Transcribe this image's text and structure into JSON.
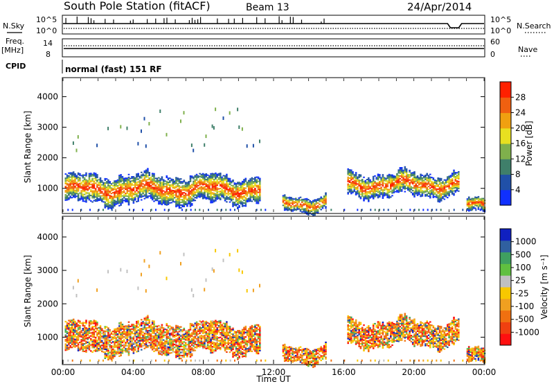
{
  "header": {
    "station": "South Pole Station (fitACF)",
    "beam": "Beam 13",
    "date": "24/Apr/2014"
  },
  "aux_panels": {
    "nsky_label": "N.Sky",
    "nsearch_label": "N.Search",
    "nsky_ticks": [
      "10^5",
      "10^0"
    ],
    "nsky_ticks_right": [
      "10^5",
      "10^0"
    ],
    "freq_label_1": "Freq.",
    "freq_label_2": "[MHz]",
    "freq_ticks": [
      "14",
      "8"
    ],
    "nave_label": "Nave",
    "nave_ticks": [
      "60",
      "0"
    ],
    "cpid_label": "CPID",
    "cpid_text": "normal (fast) 151 RF"
  },
  "chart_data": [
    {
      "type": "heatmap",
      "panel": "power",
      "ylabel": "Slant Range [km]",
      "yticks": [
        1000,
        2000,
        3000,
        4000
      ],
      "ylim": [
        200,
        4600
      ],
      "xlim": [
        0,
        24
      ],
      "colorbar": {
        "label": "Power [dB]",
        "ticks": [
          "4",
          "8",
          "12",
          "16",
          "20",
          "24",
          "28"
        ],
        "colors": [
          "#1030ff",
          "#2050a8",
          "#3f7f6a",
          "#7fb04c",
          "#e8e020",
          "#f0a010",
          "#f06010",
          "#ff2000"
        ]
      },
      "echo_bands": [
        {
          "t0": 0.1,
          "t1": 11.2,
          "range_center": 950,
          "range_halfwidth": 420
        },
        {
          "t0": 12.5,
          "t1": 15.0,
          "range_center": 500,
          "range_halfwidth": 220
        },
        {
          "t0": 16.2,
          "t1": 22.5,
          "range_center": 1100,
          "range_halfwidth": 350
        },
        {
          "t0": 23.0,
          "t1": 24.0,
          "range_center": 400,
          "range_halfwidth": 200
        }
      ]
    },
    {
      "type": "heatmap",
      "panel": "velocity",
      "ylabel": "Slant Range [km]",
      "xlabel": "Time UT",
      "yticks": [
        1000,
        2000,
        3000,
        4000
      ],
      "ylim": [
        200,
        4600
      ],
      "xlim": [
        0,
        24
      ],
      "xticks": [
        "00:00",
        "04:00",
        "08:00",
        "12:00",
        "16:00",
        "20:00",
        "00:00"
      ],
      "colorbar": {
        "label": "Velocity [m s⁻¹]",
        "ticks": [
          "-1000",
          "-500",
          "-100",
          "-25",
          "25",
          "100",
          "500",
          "1000"
        ],
        "colors": [
          "#ff1010",
          "#f04010",
          "#f07010",
          "#f0a020",
          "#f8c800",
          "#c0c0c0",
          "#60c040",
          "#3fa060",
          "#3060a0",
          "#1020c0"
        ]
      }
    }
  ],
  "colors": {
    "ground_scatter": "#b8b8b8",
    "line": "#000000"
  }
}
